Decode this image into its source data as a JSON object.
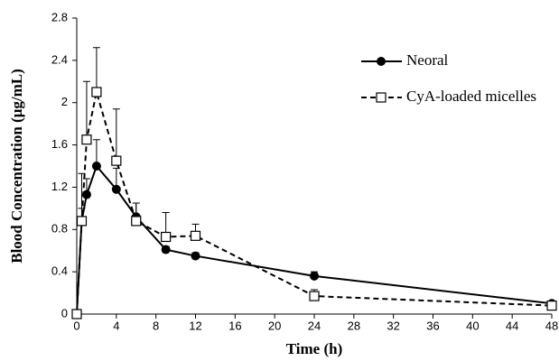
{
  "chart_data": {
    "type": "line",
    "x_label": "Time (h)",
    "y_label": "Blood Concentration (μg/mL)",
    "x": [
      0,
      0.5,
      1,
      2,
      4,
      6,
      9,
      12,
      24,
      48
    ],
    "series": [
      {
        "name": "Neoral",
        "color": "#000000",
        "line_style": "solid",
        "marker": "circle",
        "values": [
          0,
          0.88,
          1.13,
          1.4,
          1.18,
          0.92,
          0.61,
          0.55,
          0.36,
          0.1
        ],
        "errors": [
          0,
          0.12,
          0.15,
          0.25,
          0.2,
          0.13,
          0.03,
          0.03,
          0.04,
          0.02
        ]
      },
      {
        "name": "CyA-loaded micelles",
        "color": "#000000",
        "line_style": "dashed",
        "marker": "square",
        "values": [
          0,
          0.88,
          1.65,
          2.1,
          1.45,
          0.88,
          0.73,
          0.74,
          0.17,
          0.08
        ],
        "errors": [
          0,
          0.45,
          0.55,
          0.42,
          0.49,
          0.17,
          0.23,
          0.11,
          0.06,
          0.02
        ]
      }
    ],
    "xlim": [
      0,
      48
    ],
    "xticks": [
      0,
      4,
      8,
      12,
      16,
      20,
      24,
      28,
      32,
      36,
      40,
      44,
      48
    ],
    "ylim": [
      0,
      2.8
    ],
    "yticks": [
      0,
      0.4,
      0.8,
      1.2,
      1.6,
      2,
      2.4,
      2.8
    ],
    "legend": "upper right",
    "grid": false
  }
}
